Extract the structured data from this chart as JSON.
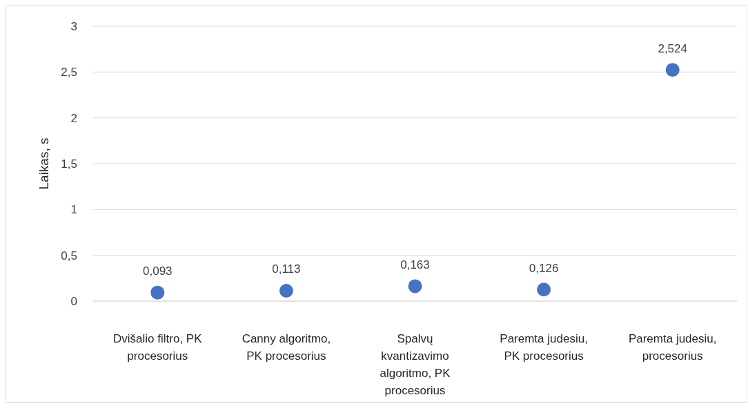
{
  "chart_data": {
    "type": "scatter",
    "categories": [
      "Dvišalio filtro, PK procesorius",
      "Canny algoritmo, PK procesorius",
      "Spalvų kvantizavimo algoritmo, PK procesorius",
      "Paremta judesiu, PK procesorius",
      "Paremta judesiu, procesorius"
    ],
    "values": [
      0.093,
      0.113,
      0.163,
      0.126,
      2.524
    ],
    "value_labels": [
      "0,093",
      "0,113",
      "0,163",
      "0,126",
      "2,524"
    ],
    "color": "#4472c4",
    "ylabel": "Laikas, s",
    "ylim": [
      0,
      3
    ],
    "yticks": [
      0,
      {
        "value": 0.5,
        "label": "0,5"
      },
      1,
      {
        "value": 1.5,
        "label": "1,5"
      },
      2,
      {
        "value": 2.5,
        "label": "2,5"
      },
      3
    ],
    "grid": "y",
    "marker": "circle"
  }
}
